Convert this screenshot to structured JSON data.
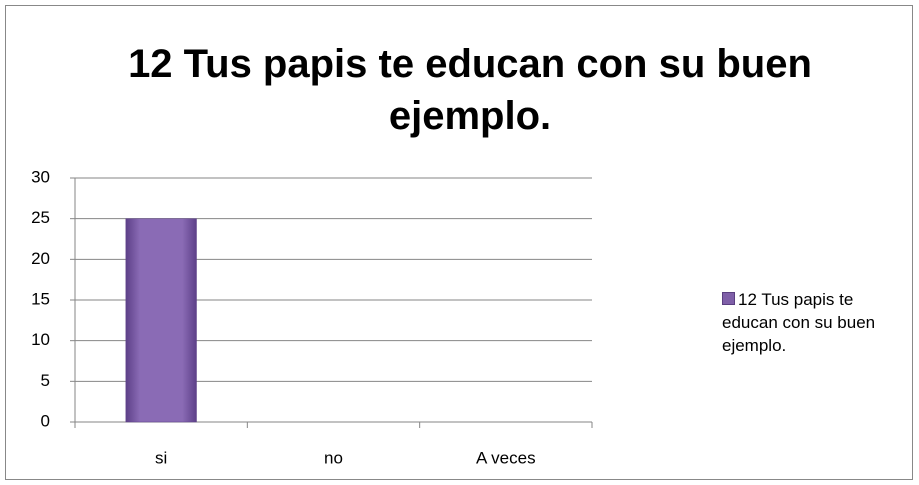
{
  "chart_data": {
    "type": "bar",
    "title": "12 Tus papis te educan con su buen ejemplo.",
    "categories": [
      "si",
      "no",
      "A veces"
    ],
    "series": [
      {
        "name": "12 Tus papis te educan con su buen ejemplo.",
        "color": "#7f5fa8",
        "values": [
          25,
          0,
          0
        ]
      }
    ],
    "ylim": [
      0,
      30
    ],
    "yticks": [
      0,
      5,
      10,
      15,
      20,
      25,
      30
    ],
    "grid": true,
    "legend": "right"
  }
}
